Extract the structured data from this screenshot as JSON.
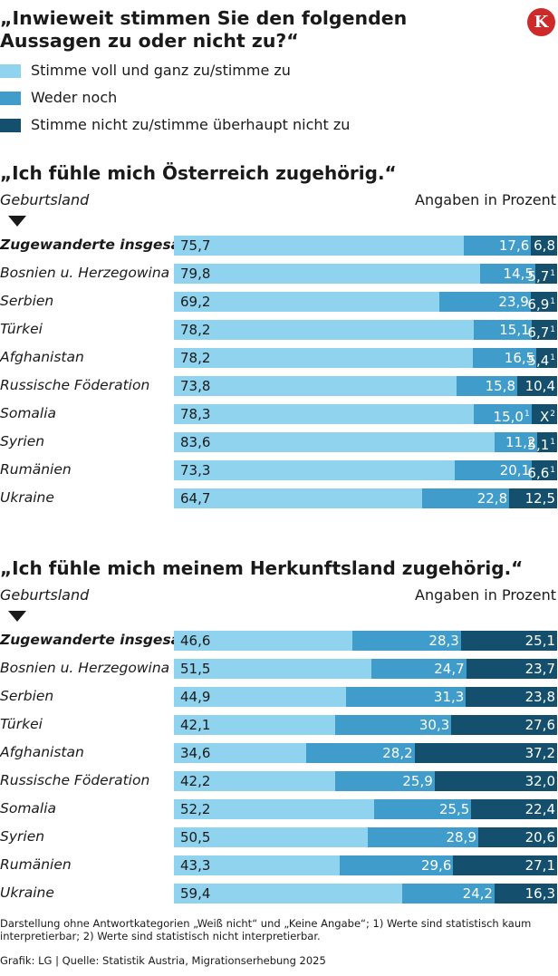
{
  "header": {
    "title": "„Inwieweit stimmen Sie den folgenden Aussagen zu oder nicht zu?“",
    "logo_letter": "K",
    "logo_color": "#cf2a2a"
  },
  "legend": [
    {
      "label": "Stimme voll und ganz zu/stimme zu",
      "color": "#8fd3ee"
    },
    {
      "label": "Weder noch",
      "color": "#3f9ccb"
    },
    {
      "label": "Stimme nicht zu/stimme überhaupt nicht zu",
      "color": "#14506e"
    }
  ],
  "chart_data": [
    {
      "type": "bar",
      "stacked": true,
      "orientation": "horizontal",
      "title": "„Ich fühle mich Österreich zugehörig.“",
      "row_header": "Geburtsland",
      "unit_label": "Angaben in Prozent",
      "categories": [
        "Zugewanderte insgesamt",
        "Bosnien u. Herzegowina",
        "Serbien",
        "Türkei",
        "Afghanistan",
        "Russische Föderation",
        "Somalia",
        "Syrien",
        "Rumänien",
        "Ukraine"
      ],
      "series": [
        {
          "name": "Stimme voll und ganz zu/stimme zu",
          "values": [
            75.7,
            79.8,
            69.2,
            78.2,
            78.2,
            73.8,
            78.3,
            83.6,
            73.3,
            64.7
          ],
          "labels": [
            "75,7",
            "79,8",
            "69,2",
            "78,2",
            "78,2",
            "73,8",
            "78,3",
            "83,6",
            "73,3",
            "64,7"
          ],
          "notes": [
            "",
            "",
            "",
            "",
            "",
            "",
            "",
            "",
            "",
            ""
          ]
        },
        {
          "name": "Weder noch",
          "values": [
            17.6,
            14.5,
            23.9,
            15.1,
            16.5,
            15.8,
            15.0,
            11.2,
            20.1,
            22.8
          ],
          "labels": [
            "17,6",
            "14,5",
            "23,9",
            "15,1",
            "16,5",
            "15,8",
            "15,0",
            "11,2",
            "20,1",
            "22,8"
          ],
          "notes": [
            "",
            "",
            "",
            "",
            "",
            "",
            "1",
            "",
            "",
            ""
          ]
        },
        {
          "name": "Stimme nicht zu/stimme überhaupt nicht zu",
          "values": [
            6.8,
            5.7,
            6.9,
            6.7,
            5.4,
            10.4,
            null,
            5.1,
            6.6,
            12.5
          ],
          "labels": [
            "6,8",
            "5,7",
            "6,9",
            "6,7",
            "5,4",
            "10,4",
            "X",
            "5,1",
            "6,6",
            "12,5"
          ],
          "notes": [
            "",
            "1",
            "1",
            "1",
            "1",
            "",
            "2",
            "1",
            "1",
            ""
          ]
        }
      ]
    },
    {
      "type": "bar",
      "stacked": true,
      "orientation": "horizontal",
      "title": "„Ich fühle mich meinem Herkunftsland zugehörig.“",
      "row_header": "Geburtsland",
      "unit_label": "Angaben in Prozent",
      "categories": [
        "Zugewanderte insgesamt",
        "Bosnien u. Herzegowina",
        "Serbien",
        "Türkei",
        "Afghanistan",
        "Russische Föderation",
        "Somalia",
        "Syrien",
        "Rumänien",
        "Ukraine"
      ],
      "series": [
        {
          "name": "Stimme voll und ganz zu/stimme zu",
          "values": [
            46.6,
            51.5,
            44.9,
            42.1,
            34.6,
            42.2,
            52.2,
            50.5,
            43.3,
            59.4
          ],
          "labels": [
            "46,6",
            "51,5",
            "44,9",
            "42,1",
            "34,6",
            "42,2",
            "52,2",
            "50,5",
            "43,3",
            "59,4"
          ],
          "notes": [
            "",
            "",
            "",
            "",
            "",
            "",
            "",
            "",
            "",
            ""
          ]
        },
        {
          "name": "Weder noch",
          "values": [
            28.3,
            24.7,
            31.3,
            30.3,
            28.2,
            25.9,
            25.5,
            28.9,
            29.6,
            24.2
          ],
          "labels": [
            "28,3",
            "24,7",
            "31,3",
            "30,3",
            "28,2",
            "25,9",
            "25,5",
            "28,9",
            "29,6",
            "24,2"
          ],
          "notes": [
            "",
            "",
            "",
            "",
            "",
            "",
            "",
            "",
            "",
            ""
          ]
        },
        {
          "name": "Stimme nicht zu/stimme überhaupt nicht zu",
          "values": [
            25.1,
            23.7,
            23.8,
            27.6,
            37.2,
            32.0,
            22.4,
            20.6,
            27.1,
            16.3
          ],
          "labels": [
            "25,1",
            "23,7",
            "23,8",
            "27,6",
            "37,2",
            "32,0",
            "22,4",
            "20,6",
            "27,1",
            "16,3"
          ],
          "notes": [
            "",
            "",
            "",
            "",
            "",
            "",
            "",
            "",
            "",
            ""
          ]
        }
      ]
    }
  ],
  "footer": {
    "note": "Darstellung ohne Antwortkategorien „Weiß nicht“ und „Keine Angabe“; 1) Werte sind statistisch kaum interpretierbar; 2) Werte sind statistisch nicht interpretierbar.",
    "credit": "Grafik: LG | Quelle: Statistik Austria, Migrationserhebung 2025"
  }
}
